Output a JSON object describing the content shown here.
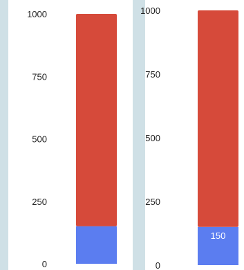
{
  "chart_data": [
    {
      "type": "bar",
      "stacked": true,
      "categories": [
        ""
      ],
      "series": [
        {
          "values": [
            150
          ],
          "color": "#5b7df0"
        },
        {
          "values": [
            850
          ],
          "color": "#d64a3a"
        }
      ],
      "ylim": [
        0,
        1000
      ],
      "yticks": [
        "0",
        "250",
        "500",
        "750",
        "1000"
      ],
      "grid": false,
      "data_labels": []
    },
    {
      "type": "bar",
      "stacked": true,
      "categories": [
        ""
      ],
      "series": [
        {
          "values": [
            150
          ],
          "color": "#5b7df0"
        },
        {
          "values": [
            850
          ],
          "color": "#d64a3a"
        }
      ],
      "ylim": [
        0,
        1000
      ],
      "yticks": [
        "0",
        "250",
        "500",
        "750",
        "1000"
      ],
      "grid": false,
      "data_labels": [
        "150"
      ]
    }
  ]
}
